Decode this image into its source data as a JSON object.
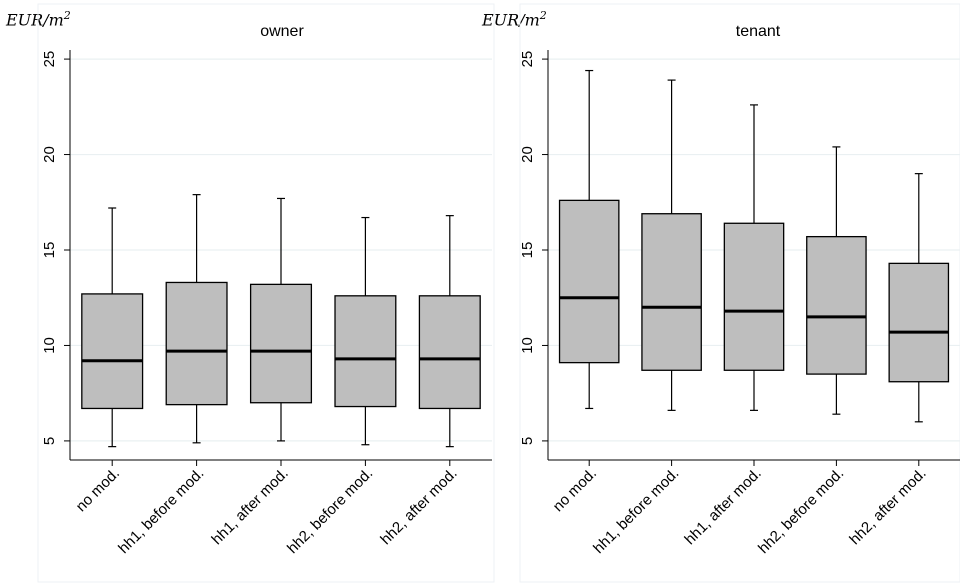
{
  "chart_data": [
    {
      "type": "boxplot",
      "title": "owner",
      "ylabel": "EUR/m",
      "ylabel_exp": "2",
      "ylim": [
        4,
        26
      ],
      "yticks": [
        5,
        10,
        15,
        20,
        25
      ],
      "grid": true,
      "box_color": "#bebebe",
      "categories": [
        "no mod.",
        "hh1, before mod.",
        "hh1, after mod.",
        "hh2, before mod.",
        "hh2, after mod."
      ],
      "boxes": [
        {
          "whisker_low": 4.7,
          "q1": 6.7,
          "median": 9.2,
          "q3": 12.7,
          "whisker_high": 17.2
        },
        {
          "whisker_low": 4.9,
          "q1": 6.9,
          "median": 9.7,
          "q3": 13.3,
          "whisker_high": 17.9
        },
        {
          "whisker_low": 5.0,
          "q1": 7.0,
          "median": 9.7,
          "q3": 13.2,
          "whisker_high": 17.7
        },
        {
          "whisker_low": 4.8,
          "q1": 6.8,
          "median": 9.3,
          "q3": 12.6,
          "whisker_high": 16.7
        },
        {
          "whisker_low": 4.7,
          "q1": 6.7,
          "median": 9.3,
          "q3": 12.6,
          "whisker_high": 16.8
        }
      ]
    },
    {
      "type": "boxplot",
      "title": "tenant",
      "ylabel": "EUR/m",
      "ylabel_exp": "2",
      "ylim": [
        4,
        26
      ],
      "yticks": [
        5,
        10,
        15,
        20,
        25
      ],
      "grid": true,
      "box_color": "#bebebe",
      "categories": [
        "no mod.",
        "hh1, before mod.",
        "hh1, after mod.",
        "hh2, before mod.",
        "hh2, after mod."
      ],
      "boxes": [
        {
          "whisker_low": 6.7,
          "q1": 9.1,
          "median": 12.5,
          "q3": 17.6,
          "whisker_high": 24.4
        },
        {
          "whisker_low": 6.6,
          "q1": 8.7,
          "median": 12.0,
          "q3": 16.9,
          "whisker_high": 23.9
        },
        {
          "whisker_low": 6.6,
          "q1": 8.7,
          "median": 11.8,
          "q3": 16.4,
          "whisker_high": 22.6
        },
        {
          "whisker_low": 6.4,
          "q1": 8.5,
          "median": 11.5,
          "q3": 15.7,
          "whisker_high": 20.4
        },
        {
          "whisker_low": 6.0,
          "q1": 8.1,
          "median": 10.7,
          "q3": 14.3,
          "whisker_high": 19.0
        }
      ]
    }
  ]
}
